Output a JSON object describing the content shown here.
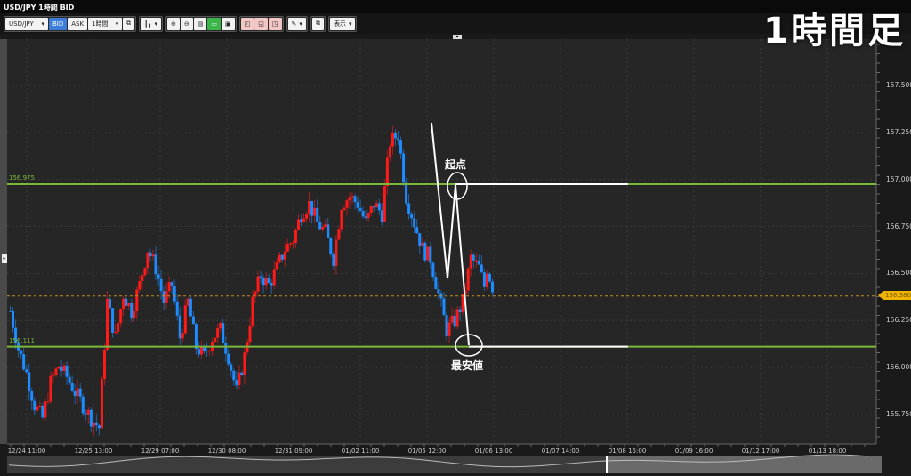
{
  "window": {
    "title": "USD/JPY 1時間 BID"
  },
  "overlay_title": "1時間足",
  "toolbar": {
    "symbol": "USD/JPY",
    "bid_label": "BID",
    "ask_label": "ASK",
    "timeframe": "1時間",
    "display_label": "表示"
  },
  "chart": {
    "y_ticks": [
      "157.500",
      "157.250",
      "157.000",
      "156.750",
      "156.500",
      "156.250",
      "156.000",
      "155.750"
    ],
    "x_ticks": [
      "12/24 11:00",
      "12/25 13:00",
      "12/29 07:00",
      "12/30 08:00",
      "12/31 09:00",
      "01/02 11:00",
      "01/05 12:00",
      "01/06 13:00",
      "01/07 14:00",
      "01/08 15:00",
      "01/09 16:00",
      "01/12 17:00",
      "01/13 18:00"
    ],
    "current_price": "156.380",
    "levels": [
      {
        "label": "156.975",
        "price": 156.975,
        "color": "#7ab93a"
      },
      {
        "label": "156.111",
        "price": 156.111,
        "color": "#7ab93a"
      }
    ],
    "annotations": {
      "start_label": "起点",
      "low_label": "最安値"
    },
    "colors": {
      "up": "#ff1a1a",
      "down": "#1e8cff",
      "background": "#262626",
      "level": "#7ab93a",
      "current": "#c89020"
    }
  },
  "chart_data": {
    "type": "candlestick",
    "ylim": [
      155.65,
      157.62
    ],
    "closes": [
      156.3,
      156.1,
      155.97,
      155.8,
      155.73,
      155.92,
      156.01,
      155.95,
      155.87,
      155.8,
      155.73,
      155.68,
      156.35,
      156.16,
      156.39,
      156.3,
      156.44,
      156.63,
      156.53,
      156.35,
      156.44,
      156.16,
      156.35,
      156.11,
      156.06,
      156.16,
      156.2,
      156.06,
      155.87,
      156.06,
      156.35,
      156.49,
      156.44,
      156.53,
      156.63,
      156.68,
      156.82,
      156.87,
      156.77,
      156.72,
      156.58,
      156.87,
      156.91,
      156.87,
      156.77,
      156.87,
      156.82,
      157.2,
      157.24,
      156.91,
      156.77,
      156.63,
      156.58,
      156.39,
      156.2,
      156.25,
      156.35,
      156.58,
      156.53,
      156.38
    ]
  }
}
